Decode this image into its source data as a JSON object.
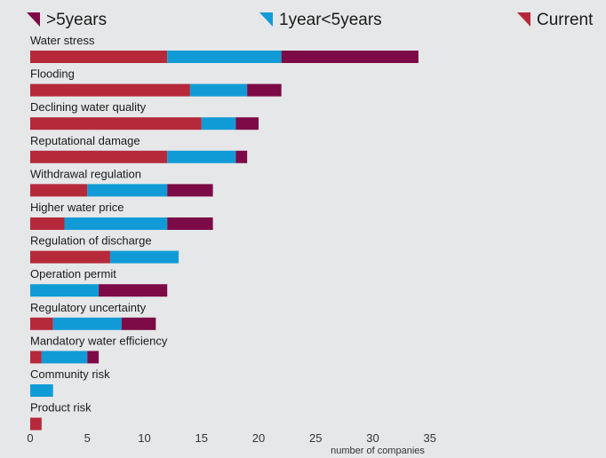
{
  "chart_data": {
    "type": "bar",
    "orientation": "horizontal",
    "stacked": true,
    "title": "",
    "xlabel": "number of companies",
    "ylabel": "",
    "xlim": [
      0,
      35
    ],
    "xticks": [
      0,
      5,
      10,
      15,
      20,
      25,
      30,
      35
    ],
    "grid": false,
    "legend_position": "top",
    "categories": [
      "Water stress",
      "Flooding",
      "Declining water quality",
      "Reputational damage",
      "Withdrawal regulation",
      "Higher water price",
      "Regulation of discharge",
      "Operation permit",
      "Regulatory uncertainty",
      "Mandatory water efficiency",
      "Community risk",
      "Product risk"
    ],
    "series": [
      {
        "name": "Current",
        "color": "#b5293a",
        "values": [
          12,
          14,
          15,
          12,
          5,
          3,
          7,
          0,
          2,
          1,
          0,
          1
        ]
      },
      {
        "name": "1year<5years",
        "color": "#119bd6",
        "values": [
          10,
          5,
          3,
          6,
          7,
          9,
          6,
          6,
          6,
          4,
          2,
          0
        ]
      },
      {
        "name": ">5years",
        "color": "#7c0a46",
        "values": [
          12,
          3,
          2,
          1,
          4,
          4,
          0,
          6,
          3,
          1,
          0,
          0
        ]
      }
    ],
    "legend_order": [
      ">5years",
      "1year<5years",
      "Current"
    ]
  }
}
